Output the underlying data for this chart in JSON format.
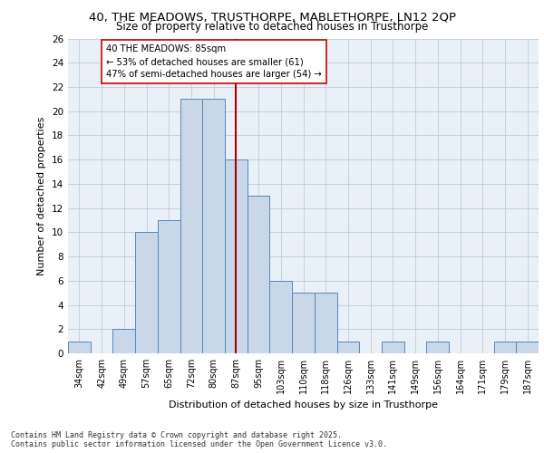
{
  "title_line1": "40, THE MEADOWS, TRUSTHORPE, MABLETHORPE, LN12 2QP",
  "title_line2": "Size of property relative to detached houses in Trusthorpe",
  "xlabel": "Distribution of detached houses by size in Trusthorpe",
  "ylabel": "Number of detached properties",
  "categories": [
    "34sqm",
    "42sqm",
    "49sqm",
    "57sqm",
    "65sqm",
    "72sqm",
    "80sqm",
    "87sqm",
    "95sqm",
    "103sqm",
    "110sqm",
    "118sqm",
    "126sqm",
    "133sqm",
    "141sqm",
    "149sqm",
    "156sqm",
    "164sqm",
    "171sqm",
    "179sqm",
    "187sqm"
  ],
  "values": [
    1,
    0,
    2,
    10,
    11,
    21,
    21,
    16,
    13,
    6,
    5,
    5,
    1,
    0,
    1,
    0,
    1,
    0,
    0,
    1,
    1
  ],
  "bar_color": "#c8d8e8",
  "bar_edge_color": "#5588bb",
  "vline_x": 7,
  "vline_color": "#aa0000",
  "ylim": [
    0,
    26
  ],
  "yticks": [
    0,
    2,
    4,
    6,
    8,
    10,
    12,
    14,
    16,
    18,
    20,
    22,
    24,
    26
  ],
  "annotation_text": "40 THE MEADOWS: 85sqm\n← 53% of detached houses are smaller (61)\n47% of semi-detached houses are larger (54) →",
  "annotation_box_color": "#ffffff",
  "annotation_box_edge": "#cc0000",
  "footer_text": "Contains HM Land Registry data © Crown copyright and database right 2025.\nContains public sector information licensed under the Open Government Licence v3.0.",
  "bg_color": "#eaf0f8",
  "grid_color": "#c0ccd8"
}
